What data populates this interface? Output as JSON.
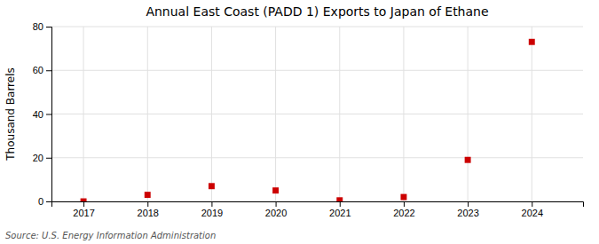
{
  "chart_data": {
    "type": "scatter",
    "title": "Annual East Coast (PADD 1) Exports to Japan of Ethane",
    "ylabel": "Thousand Barrels",
    "annotations": [
      "Source: U.S. Energy Information Administration"
    ],
    "x": [
      2017,
      2018,
      2019,
      2020,
      2021,
      2022,
      2023,
      2024
    ],
    "values": [
      0,
      3,
      7,
      5,
      0.5,
      2,
      19,
      73
    ],
    "color": "#cc0000",
    "marker": "square",
    "xlim": [
      2016.5,
      2024.8
    ],
    "xticks": [
      2017,
      2018,
      2019,
      2020,
      2021,
      2022,
      2023,
      2024
    ],
    "ylim": [
      0,
      80
    ],
    "yticks": [
      0,
      20,
      40,
      60,
      80
    ],
    "grid": true
  }
}
